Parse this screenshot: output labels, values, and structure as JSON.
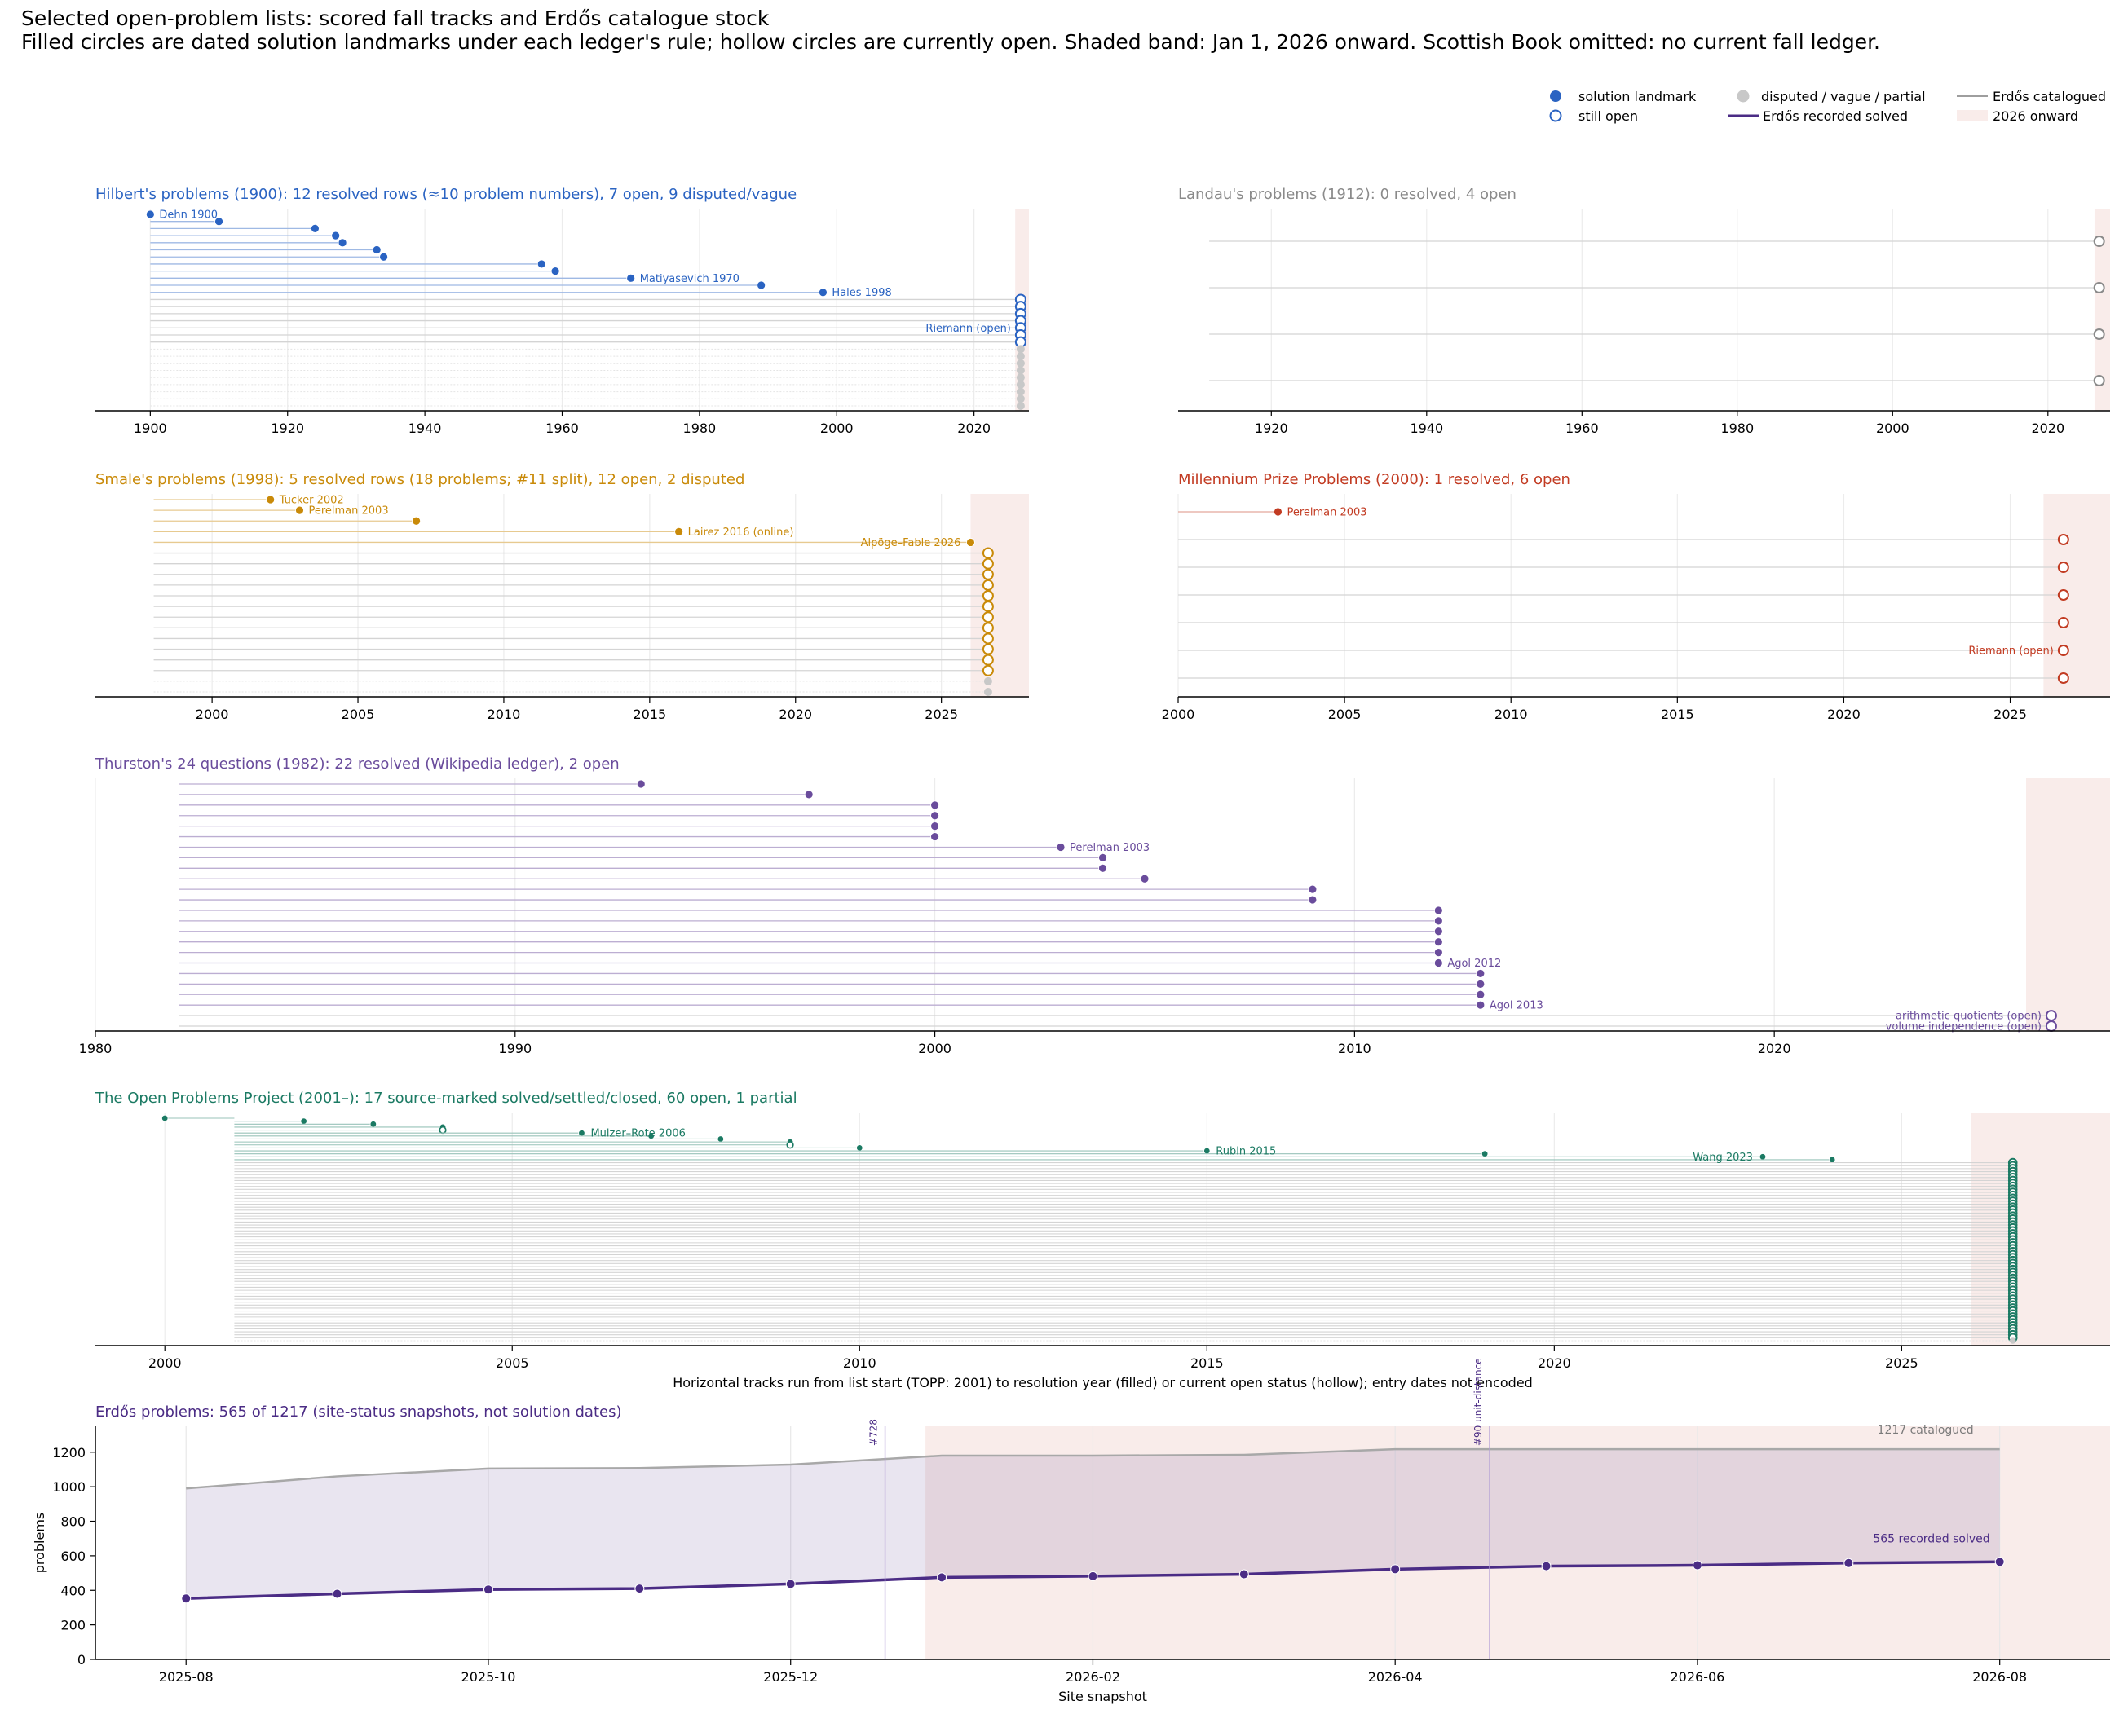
{
  "header": {
    "title": "Selected open-problem lists: scored fall tracks and Erdős catalogue stock",
    "subtitle": "Filled circles are dated solution landmarks under each ledger's rule; hollow circles are currently open. Shaded band: Jan 1, 2026 onward. Scottish Book omitted: no current fall ledger."
  },
  "legend": {
    "items": [
      {
        "kind": "dot-filled",
        "label": "solution landmark",
        "color": "#2a63c2"
      },
      {
        "kind": "dot-hollow",
        "label": "still open",
        "color": "#2a63c2"
      },
      {
        "kind": "dot-gray",
        "label": "disputed / vague / partial",
        "color": "#c8c8c8"
      },
      {
        "kind": "line-purple",
        "label": "Erdős recorded solved",
        "color": "#4b2c85"
      },
      {
        "kind": "line-gray",
        "label": "Erdős catalogued",
        "color": "#9e9e9e"
      },
      {
        "kind": "band",
        "label": "2026 onward",
        "color": "#f9ecea"
      }
    ]
  },
  "colors": {
    "hilbert": "#2a63c2",
    "landau": "#8a8a8a",
    "smale": "#c98a09",
    "millennium": "#c23b22",
    "thurston": "#6a4c9c",
    "topp": "#1b7a63",
    "erdos": "#4b2c85",
    "band": "#f9ecea",
    "disputed": "#c8c8c8"
  },
  "chart_data": [
    {
      "id": "hilbert",
      "type": "scatter",
      "title": "Hilbert's problems (1900): 12 resolved rows (≈10 problem numbers), 7 open, 9 disputed/vague",
      "xlim": [
        1892,
        2028
      ],
      "start": 1900,
      "xticks": [
        1900,
        1920,
        1940,
        1960,
        1980,
        2000,
        2020
      ],
      "band_start": 2026,
      "open_x": 2026.8,
      "solved": [
        1900,
        1910,
        1924,
        1927,
        1928,
        1933,
        1934,
        1957,
        1959,
        1970,
        1989,
        1998
      ],
      "open": 7,
      "disputed": 9,
      "annotations": [
        {
          "row": 0,
          "text": "Dehn 1900"
        },
        {
          "row": 9,
          "text": "Matiyasevich 1970"
        },
        {
          "row": 11,
          "text": "Hales 1998"
        },
        {
          "row": 16,
          "text": "Riemann (open)",
          "left": true
        }
      ]
    },
    {
      "id": "landau",
      "type": "scatter",
      "title": "Landau's problems (1912): 0 resolved, 4 open",
      "xlim": [
        1908,
        2028
      ],
      "start": 1912,
      "xticks": [
        1920,
        1940,
        1960,
        1980,
        2000,
        2020
      ],
      "band_start": 2026,
      "open_x": 2026.6,
      "solved": [],
      "open": 4,
      "disputed": 0,
      "annotations": []
    },
    {
      "id": "smale",
      "type": "scatter",
      "title": "Smale's problems (1998): 5 resolved rows (18 problems; #11 split), 12 open, 2 disputed",
      "xlim": [
        1996,
        2028
      ],
      "start": 1998,
      "xticks": [
        2000,
        2005,
        2010,
        2015,
        2020,
        2025
      ],
      "band_start": 2026,
      "open_x": 2026.6,
      "solved": [
        2002,
        2003,
        2007,
        2016,
        2026
      ],
      "open": 12,
      "disputed": 2,
      "annotations": [
        {
          "row": 0,
          "text": "Tucker 2002"
        },
        {
          "row": 1,
          "text": "Perelman 2003"
        },
        {
          "row": 3,
          "text": "Lairez 2016 (online)"
        },
        {
          "row": 4,
          "text": "Alpöge–Fable 2026",
          "left": true
        }
      ]
    },
    {
      "id": "millennium",
      "type": "scatter",
      "title": "Millennium Prize Problems (2000): 1 resolved, 6 open",
      "xlim": [
        2000,
        2028
      ],
      "start": 2000,
      "xticks": [
        2000,
        2005,
        2010,
        2015,
        2020,
        2025
      ],
      "band_start": 2026,
      "open_x": 2026.6,
      "solved": [
        2003
      ],
      "open": 6,
      "disputed": 0,
      "annotations": [
        {
          "row": 0,
          "text": "Perelman 2003"
        },
        {
          "row": 5,
          "text": "Riemann (open)",
          "left": true
        }
      ]
    },
    {
      "id": "thurston",
      "type": "scatter",
      "title": "Thurston's 24 questions (1982): 22 resolved (Wikipedia ledger), 2 open",
      "xlim": [
        1980,
        2028
      ],
      "start": 1982,
      "xticks": [
        1980,
        1990,
        2000,
        2010,
        2020
      ],
      "band_start": 2026,
      "open_x": 2026.6,
      "solved": [
        1993,
        1997,
        2000,
        2000,
        2000,
        2000,
        2003,
        2004,
        2004,
        2005,
        2009,
        2009,
        2012,
        2012,
        2012,
        2012,
        2012,
        2012,
        2013,
        2013,
        2013,
        2013
      ],
      "open": 2,
      "disputed": 0,
      "annotations": [
        {
          "row": 6,
          "text": "Perelman 2003"
        },
        {
          "row": 17,
          "text": "Agol 2012"
        },
        {
          "row": 21,
          "text": "Agol 2013"
        },
        {
          "row": 22,
          "text": "arithmetic quotients (open)",
          "left": true
        },
        {
          "row": 23,
          "text": "volume independence (open)",
          "left": true
        }
      ]
    },
    {
      "id": "topp",
      "type": "scatter",
      "title": "The Open Problems Project (2001–): 17 source-marked solved/settled/closed, 60 open, 1 partial",
      "xlim": [
        1999,
        2028
      ],
      "start": 2001,
      "xticks": [
        2000,
        2005,
        2010,
        2015,
        2020,
        2025
      ],
      "band_start": 2026,
      "open_x": 2026.6,
      "solved": [
        2000,
        2002,
        2003,
        2004,
        2004,
        2006,
        2007,
        2008,
        2009,
        2009,
        2010,
        2015,
        2019,
        2023,
        2024
      ],
      "partial_hollow": [
        2004,
        2009
      ],
      "open": 60,
      "disputed": 1,
      "annotations": [
        {
          "row": 5,
          "text": "Mulzer–Rote 2006"
        },
        {
          "row": 11,
          "text": "Rubin 2015"
        },
        {
          "row": 13,
          "text": "Wang 2023",
          "left": true
        }
      ],
      "xlabel": "Horizontal tracks run from list start (TOPP: 2001) to resolution year (filled) or current open status (hollow); entry dates not encoded"
    },
    {
      "id": "erdos",
      "type": "line",
      "title": "Erdős problems: 565 of 1217 (site-status snapshots, not solution dates)",
      "xlabel": "Site snapshot",
      "ylabel": "problems",
      "ylim": [
        0,
        1350
      ],
      "yticks": [
        0,
        200,
        400,
        600,
        800,
        1000,
        1200
      ],
      "xticks": [
        "2025-08",
        "2025-10",
        "2025-12",
        "2026-02",
        "2026-04",
        "2026-06",
        "2026-08"
      ],
      "x": [
        "2025-08",
        "2025-09",
        "2025-10",
        "2025-11",
        "2025-12",
        "2026-01",
        "2026-02",
        "2026-03",
        "2026-04",
        "2026-05",
        "2026-06",
        "2026-07",
        "2026-08"
      ],
      "series": [
        {
          "name": "Erdős catalogued",
          "values": [
            990,
            1060,
            1105,
            1108,
            1128,
            1180,
            1180,
            1185,
            1217,
            1217,
            1217,
            1217,
            1217
          ]
        },
        {
          "name": "Erdős recorded solved",
          "values": [
            353,
            380,
            405,
            410,
            437,
            475,
            482,
            493,
            522,
            540,
            545,
            558,
            565
          ]
        }
      ],
      "events": [
        {
          "x": "2025-12-20",
          "label": "#728"
        },
        {
          "x": "2026-04-20",
          "label": "#90 unit-distance"
        }
      ],
      "end_labels": {
        "catalogued": "1217 catalogued",
        "solved": "565 recorded solved"
      }
    }
  ]
}
